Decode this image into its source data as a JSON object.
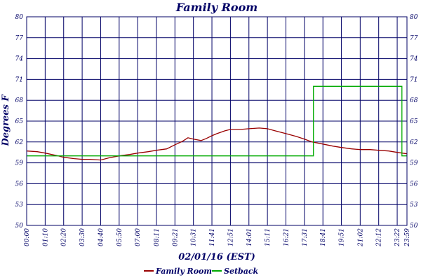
{
  "chart_data": {
    "type": "line",
    "title": "Family Room",
    "xlabel": "02/01/16 (EST)",
    "ylabel": "Degrees F",
    "ylim": [
      50,
      80
    ],
    "xlim_minutes": [
      0,
      1439
    ],
    "y_ticks": [
      "50",
      "53",
      "56",
      "59",
      "62",
      "65",
      "68",
      "71",
      "74",
      "77",
      "80"
    ],
    "x_ticks": [
      "00:00",
      "01:10",
      "02:20",
      "03:30",
      "04:40",
      "05:50",
      "07:00",
      "08:11",
      "09:21",
      "10:31",
      "11:41",
      "12:51",
      "14:01",
      "15:11",
      "16:21",
      "17:31",
      "18:41",
      "19:51",
      "21:02",
      "22:12",
      "23:22",
      "23:59"
    ],
    "grid": true,
    "legend_position": "bottom",
    "series": [
      {
        "name": "Family Room",
        "color": "#990000",
        "x": [
          "00:00",
          "00:40",
          "01:10",
          "02:00",
          "02:20",
          "03:00",
          "03:30",
          "04:00",
          "04:40",
          "05:10",
          "05:50",
          "06:30",
          "07:00",
          "07:40",
          "08:11",
          "08:50",
          "09:21",
          "09:50",
          "10:10",
          "10:31",
          "11:00",
          "11:20",
          "11:41",
          "12:00",
          "12:30",
          "12:51",
          "13:30",
          "14:01",
          "14:40",
          "15:11",
          "15:40",
          "16:21",
          "17:00",
          "17:31",
          "18:00",
          "18:41",
          "19:20",
          "19:51",
          "20:30",
          "21:02",
          "21:40",
          "22:12",
          "22:50",
          "23:22",
          "23:59"
        ],
        "y": [
          60.7,
          60.6,
          60.4,
          60.0,
          59.8,
          59.6,
          59.5,
          59.5,
          59.4,
          59.7,
          60.0,
          60.2,
          60.4,
          60.6,
          60.8,
          61.0,
          61.6,
          62.1,
          62.6,
          62.4,
          62.2,
          62.5,
          62.9,
          63.2,
          63.6,
          63.8,
          63.8,
          63.9,
          64.0,
          63.9,
          63.6,
          63.2,
          62.8,
          62.4,
          62.0,
          61.7,
          61.4,
          61.2,
          61.0,
          60.9,
          60.9,
          60.8,
          60.7,
          60.5,
          60.3
        ]
      },
      {
        "name": "Setback",
        "color": "#00aa00",
        "x": [
          "00:00",
          "18:05",
          "18:05",
          "23:40",
          "23:40",
          "23:59"
        ],
        "y": [
          60.0,
          60.0,
          70.0,
          70.0,
          60.0,
          60.0
        ]
      }
    ]
  }
}
